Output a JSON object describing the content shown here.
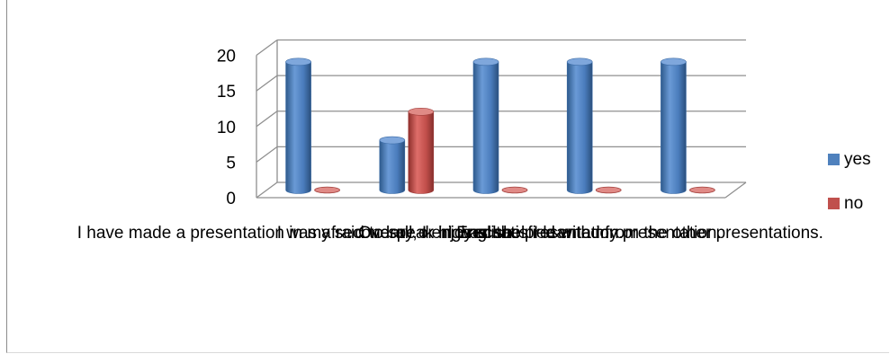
{
  "chart_data": {
    "type": "bar",
    "categories": [
      "I have made a presentation in my secondary or high school.",
      "I was afraid to speak in English.",
      "Overall, I enjoyed the presentation.",
      "I was satisfied with my presentation.",
      "I learned from the other presentations."
    ],
    "series": [
      {
        "name": "yes",
        "color": "#4F81BD",
        "values": [
          18,
          7,
          18,
          18,
          18
        ]
      },
      {
        "name": "no",
        "color": "#C0504D",
        "values": [
          0,
          11,
          0,
          0,
          0
        ]
      }
    ],
    "y_ticks": [
      "0",
      "5",
      "10",
      "15",
      "20"
    ],
    "ylim": [
      0,
      20
    ],
    "grid": true,
    "legend_position": "right",
    "style": "3d-cylinder"
  }
}
